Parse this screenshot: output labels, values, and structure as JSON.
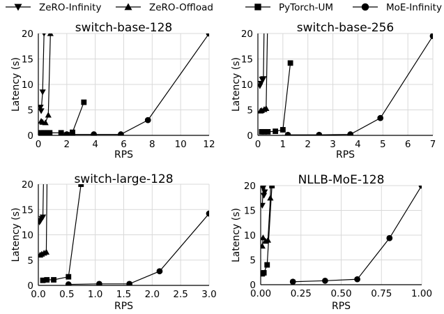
{
  "legend": {
    "entries": [
      {
        "name": "ZeRO-Infinity",
        "marker": "triangle-down"
      },
      {
        "name": "ZeRO-Offload",
        "marker": "triangle-up"
      },
      {
        "name": "PyTorch-UM",
        "marker": "square"
      },
      {
        "name": "MoE-Infinity",
        "marker": "circle"
      }
    ]
  },
  "chart_data": [
    {
      "type": "line",
      "title": "switch-base-128",
      "xlabel": "RPS",
      "ylabel": "Latency (s)",
      "xlim": [
        0,
        12
      ],
      "ylim": [
        0,
        20
      ],
      "xticks": [
        0,
        2,
        4,
        6,
        8,
        10,
        12
      ],
      "xtick_labels": [
        "0",
        "2",
        "4",
        "6",
        "8",
        "10",
        "12"
      ],
      "yticks": [
        0,
        5,
        10,
        15,
        20
      ],
      "ytick_labels": [
        "0",
        "5",
        "10",
        "15",
        "20"
      ],
      "grid": true,
      "series": [
        {
          "name": "ZeRO-Infinity",
          "marker": "triangle-down",
          "x": [
            0.15,
            0.2,
            0.3,
            0.4,
            0.5
          ],
          "y": [
            5.5,
            4.8,
            8.5,
            20,
            40
          ]
        },
        {
          "name": "ZeRO-Offload",
          "marker": "triangle-up",
          "x": [
            0.2,
            0.3,
            0.5,
            0.7,
            0.85
          ],
          "y": [
            2.8,
            2.6,
            2.5,
            4.0,
            20
          ]
        },
        {
          "name": "PyTorch-UM",
          "marker": "square",
          "x": [
            0.2,
            0.4,
            0.6,
            0.8,
            1.6,
            2.4,
            3.2
          ],
          "y": [
            0.5,
            0.5,
            0.5,
            0.5,
            0.5,
            0.6,
            6.5
          ]
        },
        {
          "name": "MoE-Infinity",
          "marker": "circle",
          "x": [
            2.0,
            3.9,
            5.8,
            7.7,
            12
          ],
          "y": [
            0.2,
            0.2,
            0.2,
            3.0,
            20
          ]
        }
      ]
    },
    {
      "type": "line",
      "title": "switch-base-256",
      "xlabel": "RPS",
      "ylabel": "Latency (s)",
      "xlim": [
        0,
        7
      ],
      "ylim": [
        0,
        20
      ],
      "xticks": [
        0,
        1,
        2,
        3,
        4,
        5,
        6,
        7
      ],
      "xtick_labels": [
        "0",
        "1",
        "2",
        "3",
        "4",
        "5",
        "6",
        "7"
      ],
      "yticks": [
        0,
        5,
        10,
        15,
        20
      ],
      "ytick_labels": [
        "0",
        "5",
        "10",
        "15",
        "20"
      ],
      "grid": true,
      "series": [
        {
          "name": "ZeRO-Infinity",
          "marker": "triangle-down",
          "x": [
            0.08,
            0.12,
            0.17,
            0.22,
            0.3
          ],
          "y": [
            9.7,
            10.2,
            11.0,
            11.1,
            40
          ]
        },
        {
          "name": "ZeRO-Offload",
          "marker": "triangle-up",
          "x": [
            0.1,
            0.15,
            0.25,
            0.33,
            0.45
          ],
          "y": [
            4.8,
            4.9,
            5.1,
            5.3,
            40
          ]
        },
        {
          "name": "PyTorch-UM",
          "marker": "square",
          "x": [
            0.15,
            0.25,
            0.4,
            0.7,
            1.0,
            1.3
          ],
          "y": [
            0.7,
            0.7,
            0.7,
            0.8,
            1.1,
            14.2
          ]
        },
        {
          "name": "MoE-Infinity",
          "marker": "circle",
          "x": [
            1.2,
            2.45,
            3.7,
            4.9,
            7
          ],
          "y": [
            0.1,
            0.1,
            0.2,
            3.4,
            19.5
          ]
        }
      ]
    },
    {
      "type": "line",
      "title": "switch-large-128",
      "xlabel": "RPS",
      "ylabel": "Latency (s)",
      "xlim": [
        0,
        3.0
      ],
      "ylim": [
        0,
        20
      ],
      "xticks": [
        0,
        0.5,
        1.0,
        1.5,
        2.0,
        2.5,
        3.0
      ],
      "xtick_labels": [
        "0.0",
        "0.5",
        "1.0",
        "1.5",
        "2.0",
        "2.5",
        "3.0"
      ],
      "yticks": [
        0,
        5,
        10,
        15,
        20
      ],
      "ytick_labels": [
        "0",
        "5",
        "10",
        "15",
        "20"
      ],
      "grid": true,
      "series": [
        {
          "name": "ZeRO-Infinity",
          "marker": "triangle-down",
          "x": [
            0.02,
            0.04,
            0.06,
            0.08,
            0.12
          ],
          "y": [
            12.5,
            12.8,
            13.2,
            13.5,
            40
          ]
        },
        {
          "name": "ZeRO-Offload",
          "marker": "triangle-up",
          "x": [
            0.03,
            0.06,
            0.1,
            0.14,
            0.17
          ],
          "y": [
            6.0,
            6.2,
            6.4,
            6.6,
            40
          ]
        },
        {
          "name": "PyTorch-UM",
          "marker": "square",
          "x": [
            0.08,
            0.15,
            0.27,
            0.53,
            0.75
          ],
          "y": [
            1.0,
            1.1,
            1.1,
            1.7,
            20
          ]
        },
        {
          "name": "MoE-Infinity",
          "marker": "circle",
          "x": [
            0.53,
            1.07,
            1.6,
            2.13,
            3.0
          ],
          "y": [
            0.2,
            0.3,
            0.3,
            2.8,
            14.2
          ]
        }
      ]
    },
    {
      "type": "line",
      "title": "NLLB-MoE-128",
      "xlabel": "RPS",
      "ylabel": "Latency (s)",
      "xlim": [
        0,
        1.0
      ],
      "ylim": [
        0,
        20
      ],
      "xticks": [
        0,
        0.25,
        0.5,
        0.75,
        1.0
      ],
      "xtick_labels": [
        "0.00",
        "0.25",
        "0.50",
        "0.75",
        "1.00"
      ],
      "yticks": [
        0,
        5,
        10,
        15,
        20
      ],
      "ytick_labels": [
        "0",
        "5",
        "10",
        "15",
        "20"
      ],
      "grid": true,
      "series": [
        {
          "name": "ZeRO-Infinity",
          "marker": "triangle-down",
          "x": [
            0.01,
            0.015,
            0.02,
            0.025,
            0.035
          ],
          "y": [
            16.0,
            19.5,
            18.0,
            18.7,
            40
          ]
        },
        {
          "name": "ZeRO-Offload",
          "marker": "triangle-up",
          "x": [
            0.01,
            0.015,
            0.03,
            0.045,
            0.06,
            0.075
          ],
          "y": [
            7.8,
            9.5,
            8.8,
            9.0,
            17.5,
            40
          ]
        },
        {
          "name": "PyTorch-UM",
          "marker": "square",
          "x": [
            0.01,
            0.02,
            0.04,
            0.07
          ],
          "y": [
            2.2,
            2.4,
            4.0,
            20
          ]
        },
        {
          "name": "MoE-Infinity",
          "marker": "circle",
          "x": [
            0.2,
            0.4,
            0.6,
            0.8,
            1.0
          ],
          "y": [
            0.6,
            0.8,
            1.1,
            9.4,
            20
          ]
        }
      ]
    }
  ]
}
